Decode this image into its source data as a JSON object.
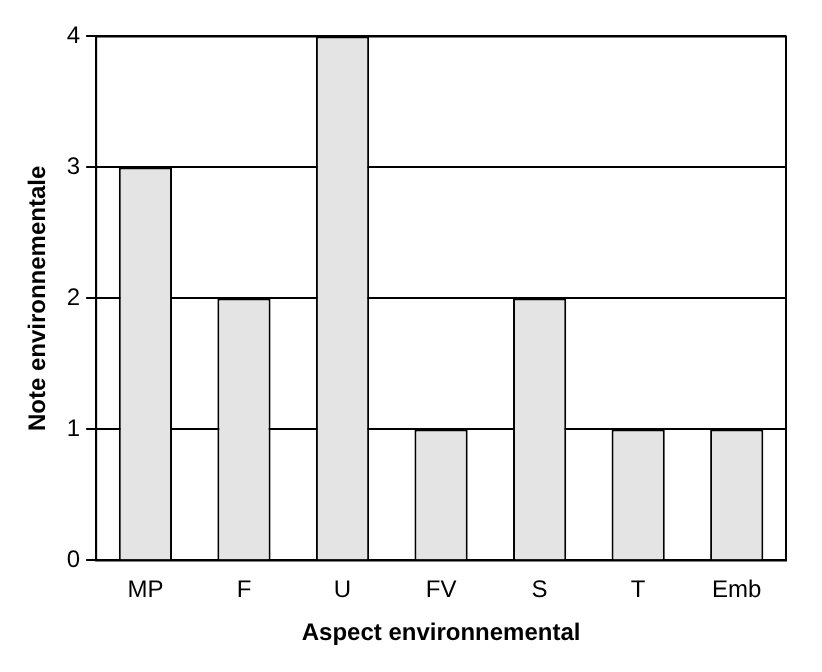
{
  "chart_data": {
    "type": "bar",
    "xlabel": "Aspect environnemental",
    "ylabel": "Note environnementale",
    "categories": [
      "MP",
      "F",
      "U",
      "FV",
      "S",
      "T",
      "Emb"
    ],
    "values": [
      3,
      2,
      4,
      1,
      2,
      1,
      1
    ],
    "color": "#e4e4e4",
    "ylim": [
      0,
      4
    ],
    "yticks": [
      0,
      1,
      2,
      3,
      4
    ],
    "grid": "y"
  }
}
